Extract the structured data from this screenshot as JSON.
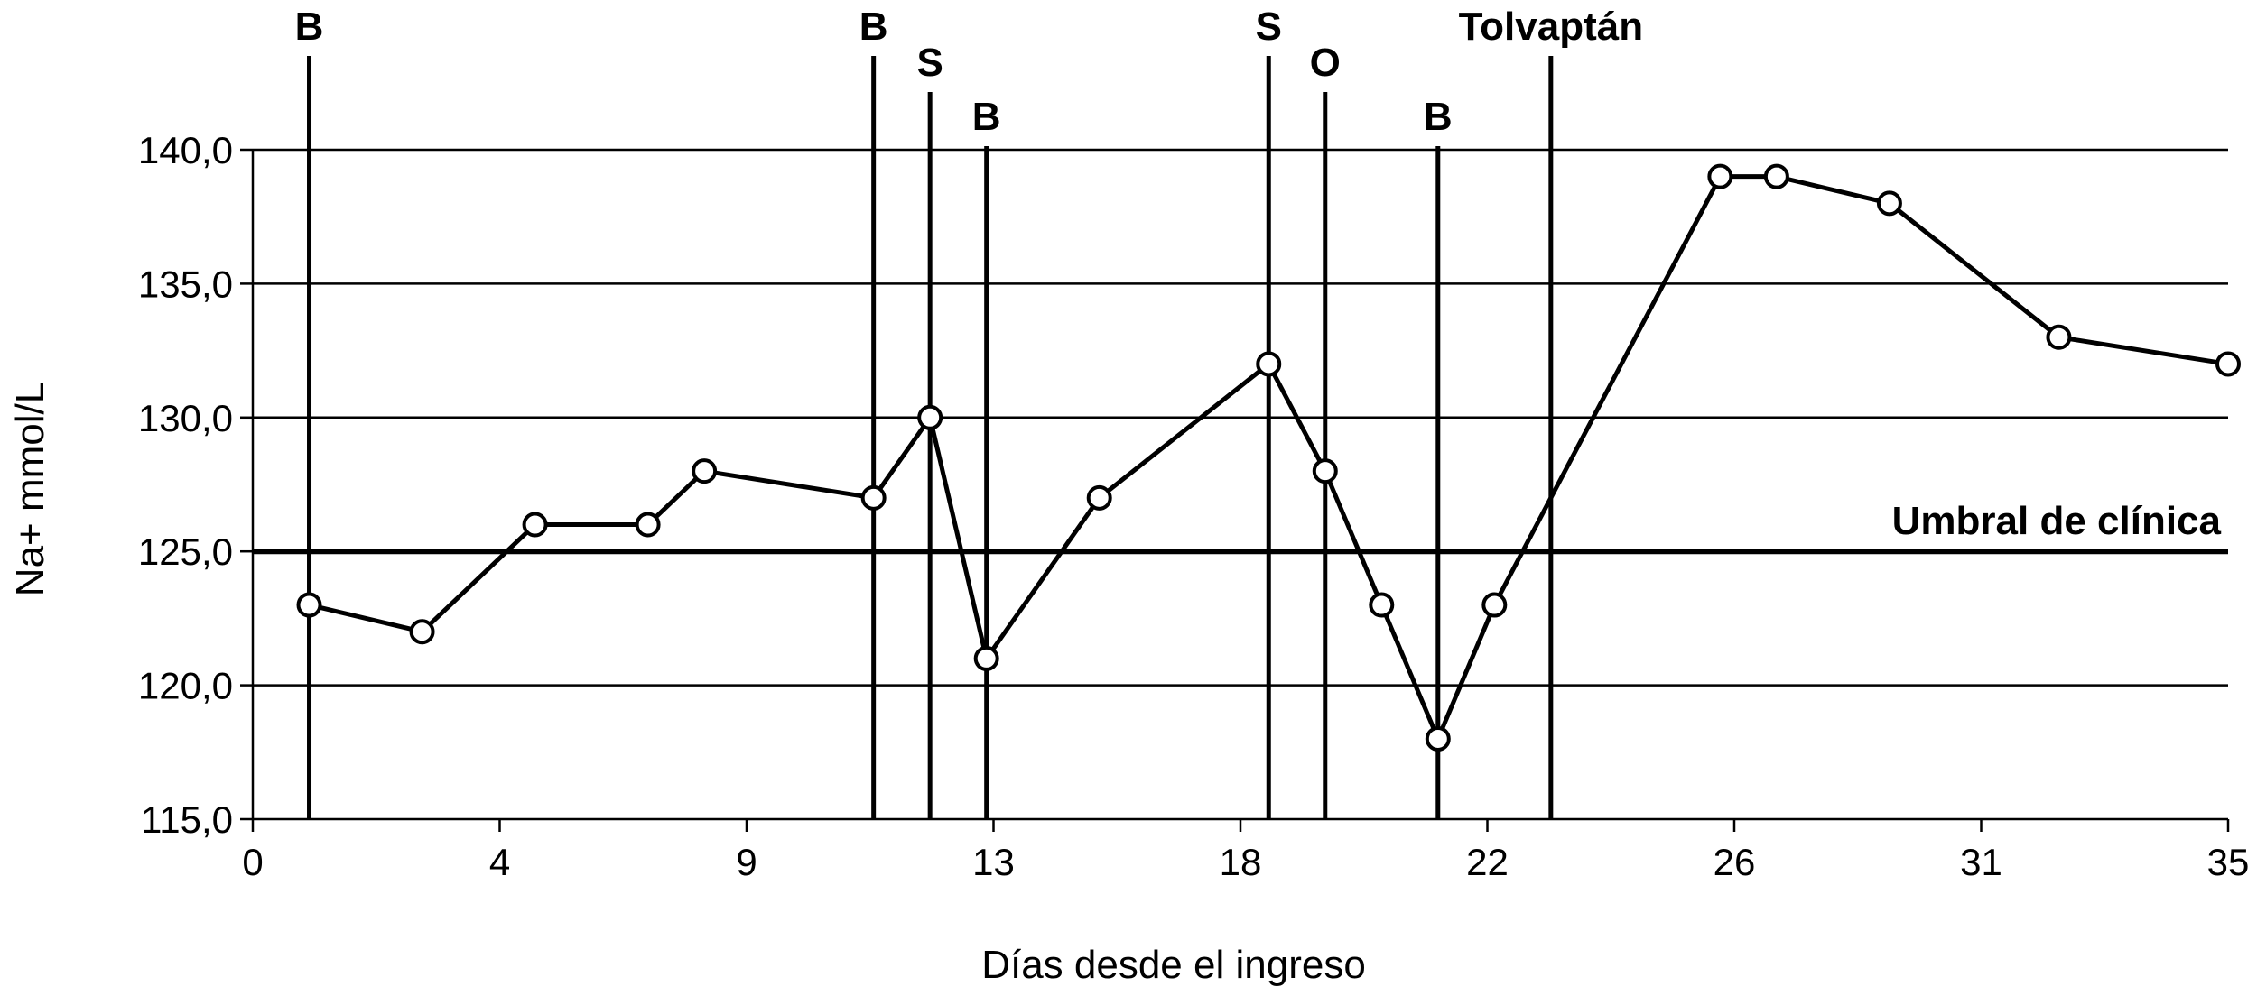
{
  "chart_data": {
    "type": "line",
    "title": "",
    "xlabel": "Días desde el ingreso",
    "ylabel": "Na+ mmol/L",
    "ylim": [
      115,
      140
    ],
    "yticks": [
      "115,0",
      "120,0",
      "125,0",
      "130,0",
      "135,0",
      "140,0"
    ],
    "ytick_values": [
      115,
      120,
      125,
      130,
      135,
      140
    ],
    "xticks": [
      "0",
      "4",
      "9",
      "13",
      "18",
      "22",
      "26",
      "31",
      "35"
    ],
    "x_range": [
      0,
      35
    ],
    "grid": "horizontal",
    "series": [
      {
        "x": [
          1,
          3,
          5,
          7,
          8,
          11,
          12,
          13,
          15,
          18,
          19,
          20,
          21,
          22,
          26,
          27,
          29,
          32,
          35
        ],
        "y": [
          123,
          122,
          126,
          126,
          128,
          127,
          130,
          121,
          127,
          132,
          128,
          123,
          118,
          123,
          139,
          139,
          138,
          133,
          132
        ]
      }
    ],
    "threshold": {
      "value": 125,
      "label": "Umbral de clínica"
    },
    "events": [
      {
        "label": "B",
        "x": 1
      },
      {
        "label": "B",
        "x": 11
      },
      {
        "label": "S",
        "x": 12
      },
      {
        "label": "B",
        "x": 13
      },
      {
        "label": "S",
        "x": 18
      },
      {
        "label": "O",
        "x": 19
      },
      {
        "label": "B",
        "x": 21
      },
      {
        "label": "Tolvaptán",
        "x": 23
      }
    ]
  }
}
